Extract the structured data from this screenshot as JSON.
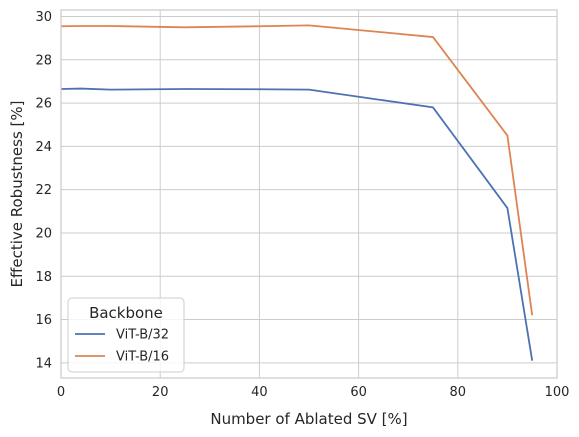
{
  "chart_data": {
    "type": "line",
    "xlabel": "Number of Ablated SV [%]",
    "ylabel": "Effective Robustness [%]",
    "xlim": [
      0,
      100
    ],
    "ylim": [
      13.3,
      30.3
    ],
    "xticks": [
      0,
      20,
      40,
      60,
      80,
      100
    ],
    "yticks": [
      14,
      16,
      18,
      20,
      22,
      24,
      26,
      28,
      30
    ],
    "grid": true,
    "legend": {
      "title": "Backbone",
      "placement": "lower-left"
    },
    "series": [
      {
        "name": "ViT-B/32",
        "color": "#4c72b0",
        "x": [
          0,
          4,
          10,
          25,
          40,
          50,
          75,
          90,
          95
        ],
        "y": [
          26.65,
          26.67,
          26.62,
          26.65,
          26.64,
          26.62,
          25.8,
          21.15,
          14.1
        ]
      },
      {
        "name": "ViT-B/16",
        "color": "#dd8452",
        "x": [
          0,
          4,
          10,
          25,
          40,
          50,
          75,
          90,
          95
        ],
        "y": [
          29.55,
          29.56,
          29.56,
          29.5,
          29.55,
          29.59,
          29.05,
          24.5,
          16.2
        ]
      }
    ]
  }
}
